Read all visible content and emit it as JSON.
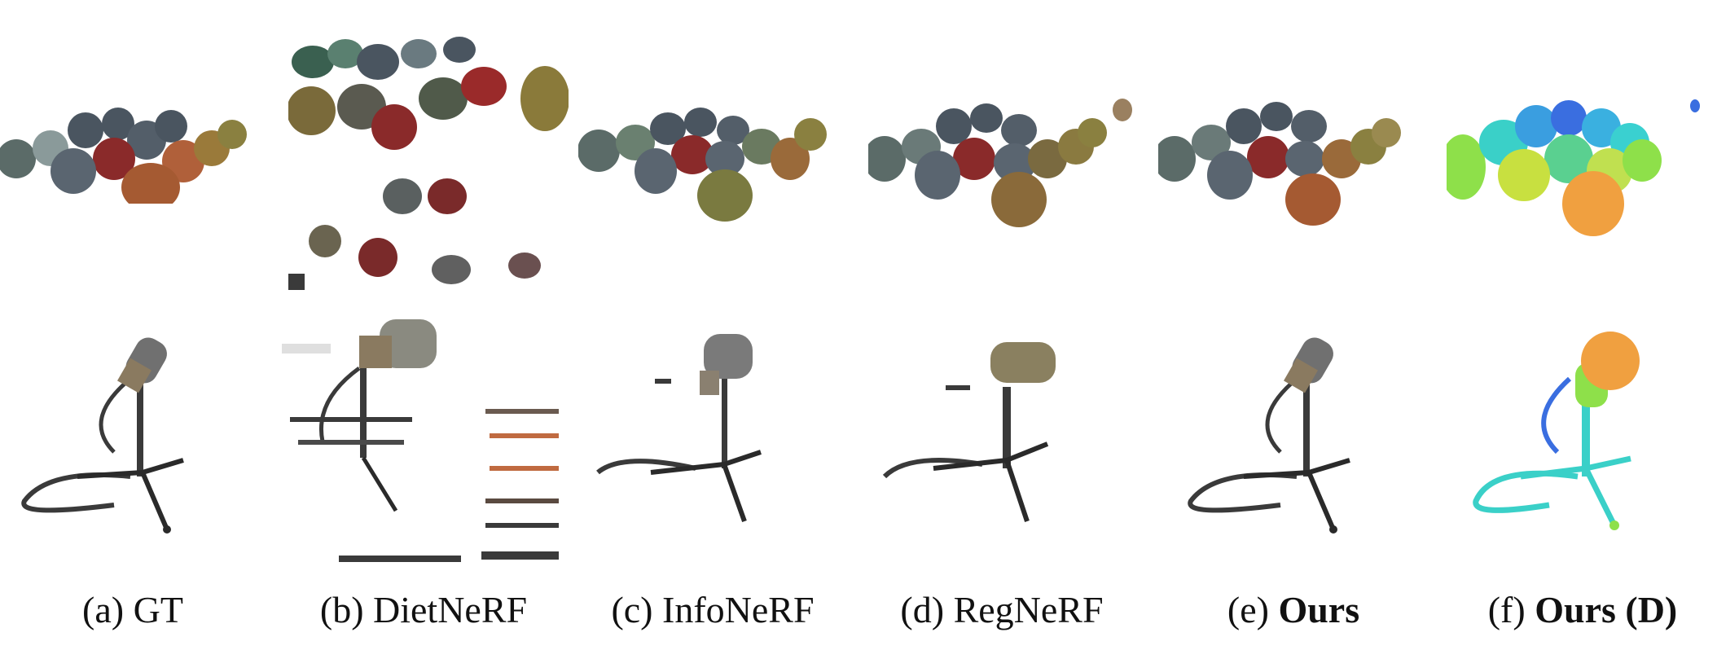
{
  "figure": {
    "columns": [
      {
        "key": "gt",
        "prefix": "(a) ",
        "name": "GT",
        "bold": false,
        "suffix": ""
      },
      {
        "key": "dietnerf",
        "prefix": "(b) ",
        "name": "DietNeRF",
        "bold": false,
        "suffix": ""
      },
      {
        "key": "infonerf",
        "prefix": "(c) ",
        "name": "InfoNeRF",
        "bold": false,
        "suffix": ""
      },
      {
        "key": "regnerf",
        "prefix": "(d) ",
        "name": "RegNeRF",
        "bold": false,
        "suffix": ""
      },
      {
        "key": "ours",
        "prefix": "(e) ",
        "name": "Ours",
        "bold": true,
        "suffix": ""
      },
      {
        "key": "ours_d",
        "prefix": "(f) ",
        "name": "Ours (D)",
        "bold": true,
        "suffix": ""
      }
    ],
    "rows": [
      "materials",
      "mic"
    ],
    "colors": {
      "sphere_dark": "#4a5560",
      "sphere_red": "#8a2a2a",
      "sphere_gold": "#9a7a3a",
      "sphere_copper": "#b0603a",
      "mic_metal": "#3a3a3a",
      "mic_head": "#707070",
      "depth_blue": "#3a6ee0",
      "depth_cyan": "#3ad0c8",
      "depth_green": "#8ee04a",
      "depth_yellow": "#e0d040",
      "depth_orange": "#f0a040"
    }
  }
}
